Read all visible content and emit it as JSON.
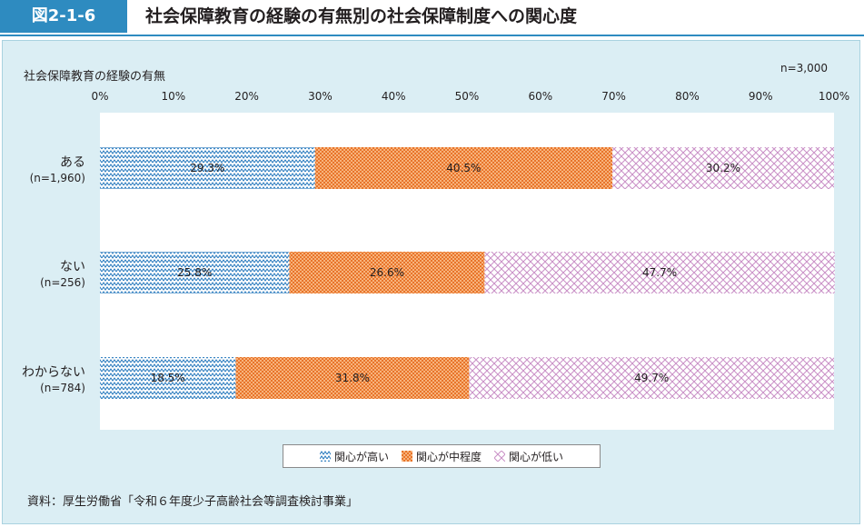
{
  "figure": {
    "label": "図2-1-6",
    "title": "社会保障教育の経験の有無別の社会保障制度への関心度"
  },
  "category_heading": "社会保障教育の経験の有無",
  "total_n": "n=3,000",
  "source": "資料：厚生労働省「令和６年度少子高齢社会等調査検討事業」",
  "colors": {
    "header_blue": "#2e8bc0",
    "panel_bg": "#dbeef4",
    "high": "#1f74bb",
    "mid": "#f08a3c",
    "low": "#c98fc6"
  },
  "chart_data": {
    "type": "bar",
    "orientation": "horizontal",
    "stacked": true,
    "percent": true,
    "xlim": [
      0,
      100
    ],
    "x_ticks": [
      "0%",
      "10%",
      "20%",
      "30%",
      "40%",
      "50%",
      "60%",
      "70%",
      "80%",
      "90%",
      "100%"
    ],
    "categories": [
      {
        "label": "ある",
        "n": "(n=1,960)"
      },
      {
        "label": "ない",
        "n": "(n=256)"
      },
      {
        "label": "わからない",
        "n": "(n=784)"
      }
    ],
    "series": [
      {
        "name": "関心が高い",
        "values": [
          29.3,
          25.8,
          18.5
        ],
        "labels": [
          "29.3%",
          "25.8%",
          "18.5%"
        ],
        "pattern": "zigzag"
      },
      {
        "name": "関心が中程度",
        "values": [
          40.5,
          26.6,
          31.8
        ],
        "labels": [
          "40.5%",
          "26.6%",
          "31.8%"
        ],
        "pattern": "dots"
      },
      {
        "name": "関心が低い",
        "values": [
          30.2,
          47.7,
          49.7
        ],
        "labels": [
          "30.2%",
          "47.7%",
          "49.7%"
        ],
        "pattern": "crosshatch"
      }
    ],
    "legend_position": "bottom-center",
    "grid": false
  }
}
